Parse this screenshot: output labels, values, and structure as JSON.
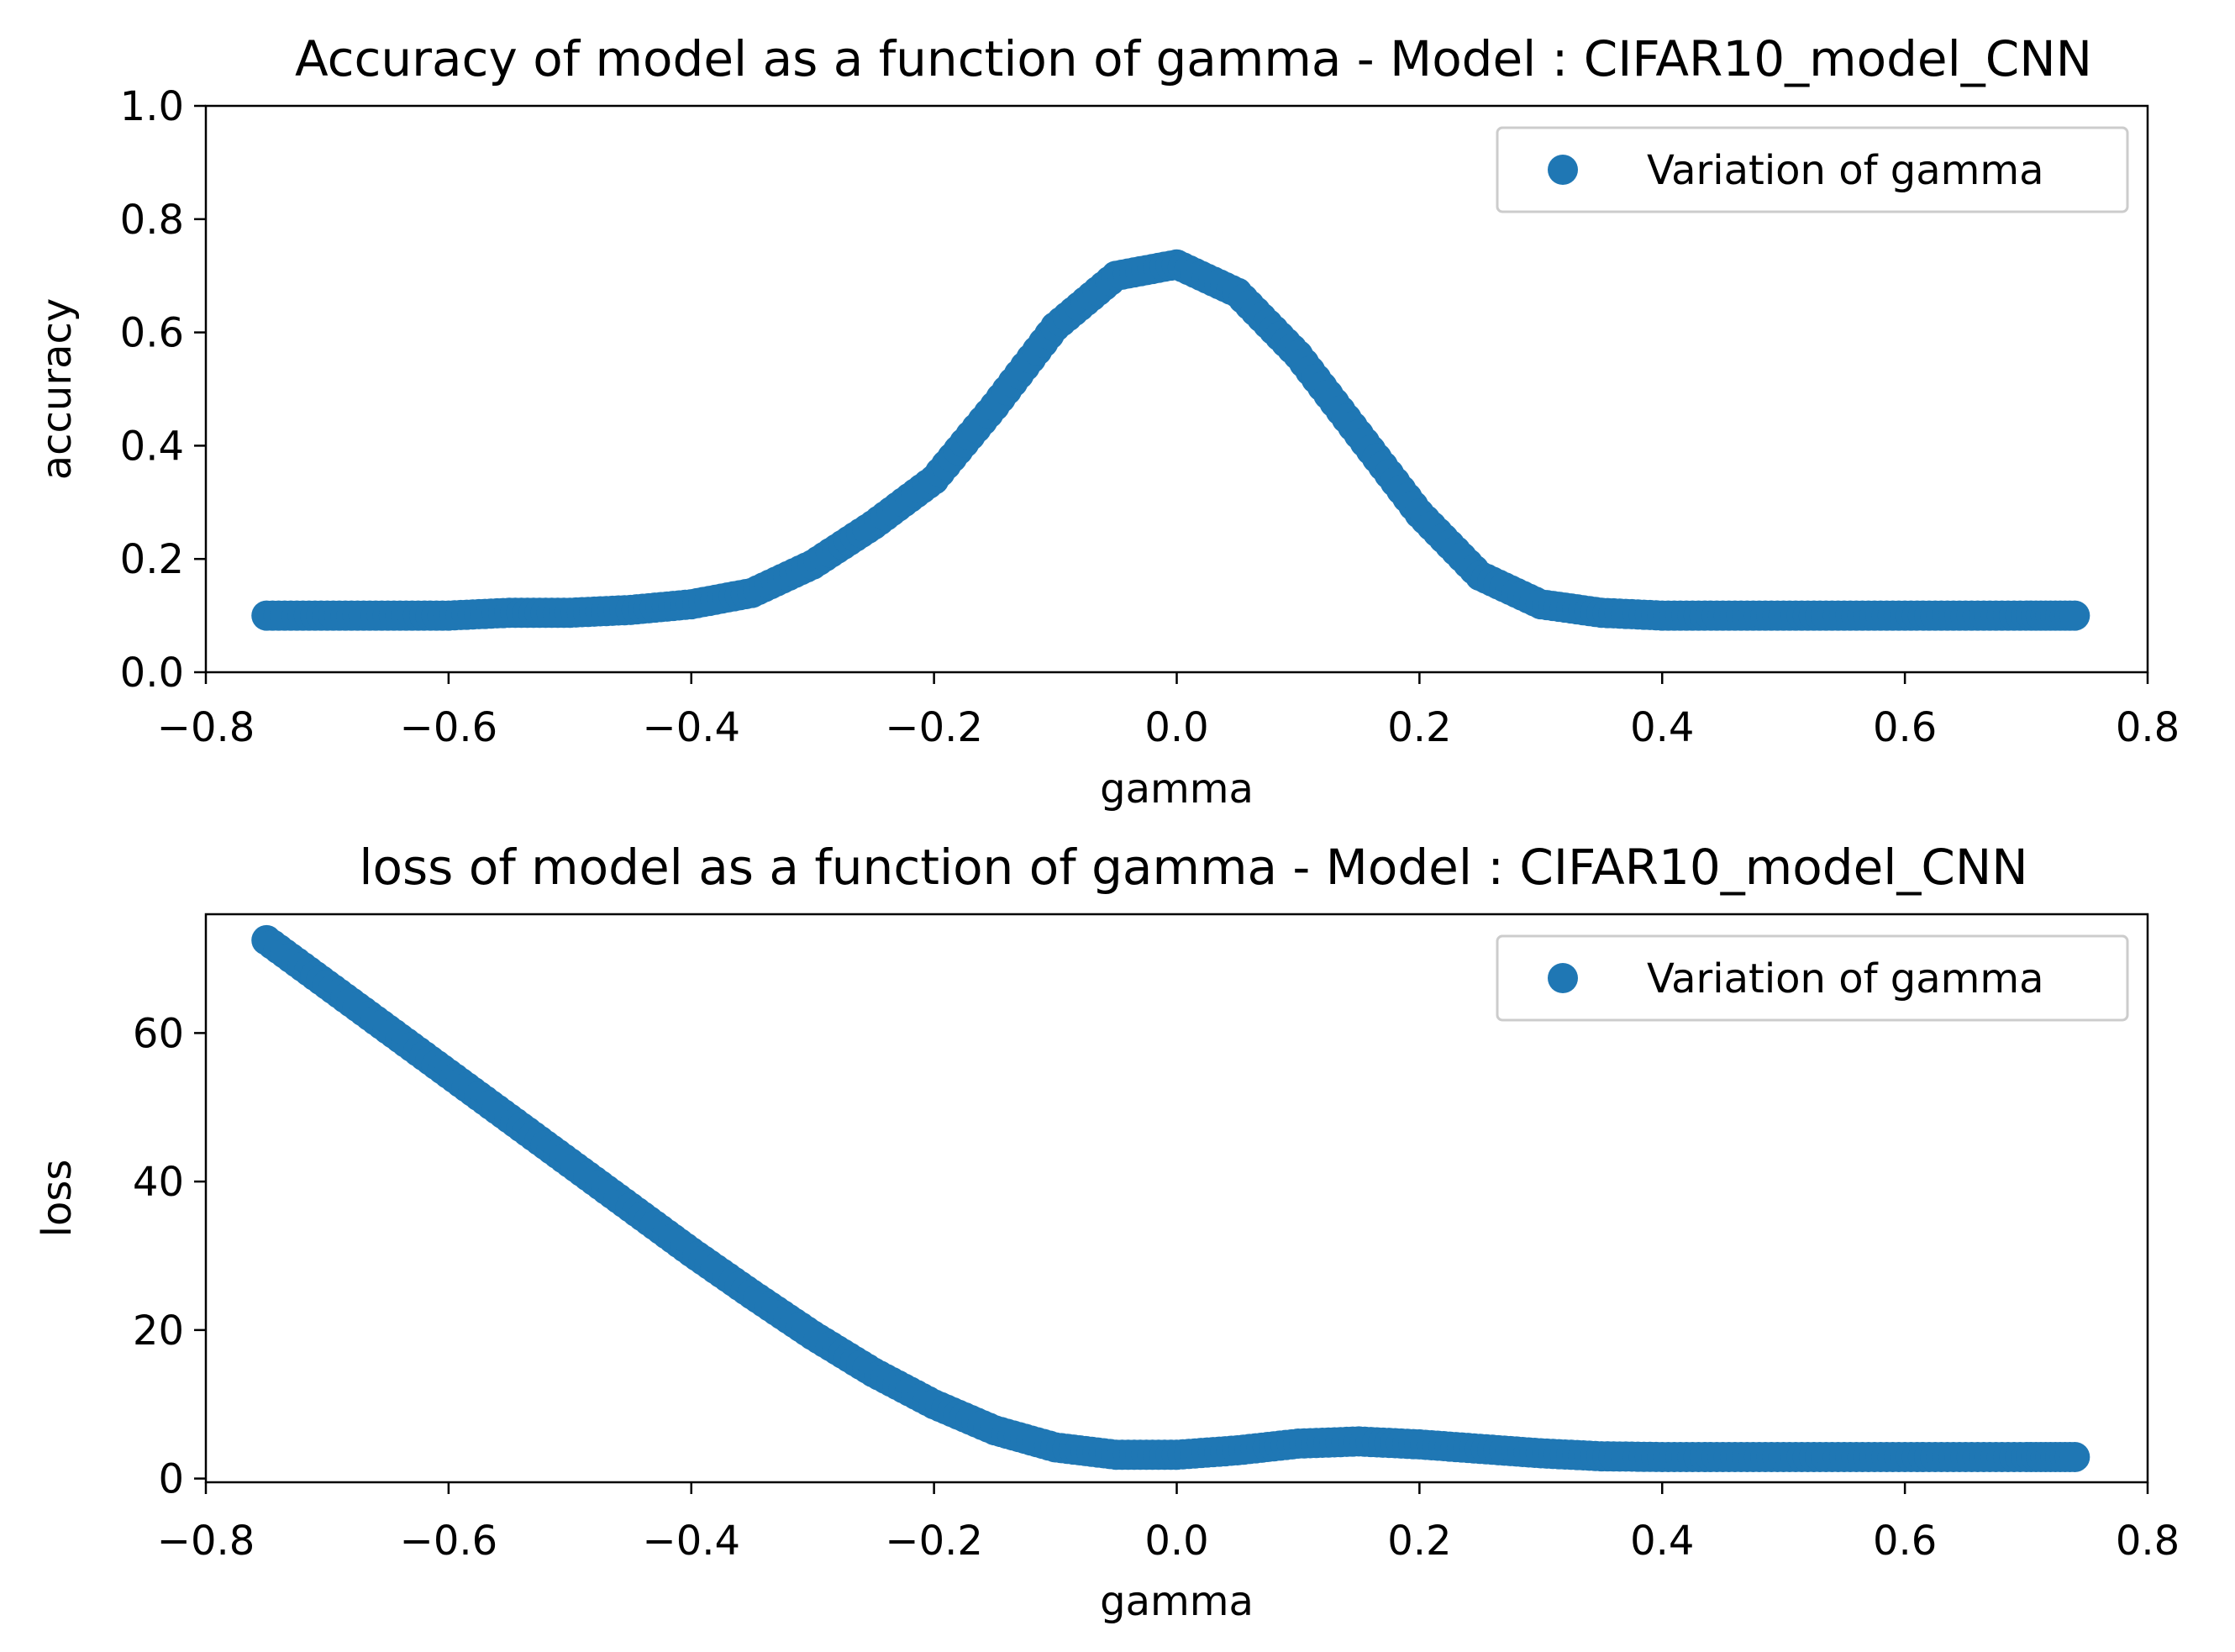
{
  "chart_data": [
    {
      "type": "scatter",
      "title": "Accuracy of model as a function of gamma - Model : CIFAR10_model_CNN",
      "xlabel": "gamma",
      "ylabel": "accuracy",
      "xlim": [
        -0.8,
        0.8
      ],
      "ylim": [
        0.0,
        1.0
      ],
      "xticks": [
        -0.8,
        -0.6,
        -0.4,
        -0.2,
        0.0,
        0.2,
        0.4,
        0.6,
        0.8
      ],
      "xtick_labels": [
        "−0.8",
        "−0.6",
        "−0.4",
        "−0.2",
        "0.0",
        "0.2",
        "0.4",
        "0.6",
        "0.8"
      ],
      "yticks": [
        0.0,
        0.2,
        0.4,
        0.6,
        0.8,
        1.0
      ],
      "ytick_labels": [
        "0.0",
        "0.2",
        "0.4",
        "0.6",
        "0.8",
        "1.0"
      ],
      "grid": false,
      "legend": "upper-right",
      "series": [
        {
          "name": "Variation of gamma",
          "color": "#1f77b4",
          "x": [
            -0.75,
            -0.7,
            -0.65,
            -0.6,
            -0.55,
            -0.5,
            -0.45,
            -0.4,
            -0.35,
            -0.3,
            -0.25,
            -0.2,
            -0.15,
            -0.1,
            -0.05,
            0.0,
            0.05,
            0.1,
            0.15,
            0.2,
            0.25,
            0.3,
            0.35,
            0.4,
            0.45,
            0.5,
            0.55,
            0.6,
            0.65,
            0.7,
            0.74
          ],
          "y": [
            0.1,
            0.1,
            0.1,
            0.1,
            0.105,
            0.105,
            0.11,
            0.12,
            0.14,
            0.19,
            0.26,
            0.34,
            0.47,
            0.61,
            0.7,
            0.72,
            0.67,
            0.56,
            0.42,
            0.28,
            0.17,
            0.12,
            0.105,
            0.1,
            0.1,
            0.1,
            0.1,
            0.1,
            0.1,
            0.1,
            0.1
          ]
        }
      ]
    },
    {
      "type": "scatter",
      "title": "loss of model as a function of gamma - Model : CIFAR10_model_CNN",
      "xlabel": "gamma",
      "ylabel": "loss",
      "xlim": [
        -0.8,
        0.8
      ],
      "ylim": [
        -0.5,
        76
      ],
      "xticks": [
        -0.8,
        -0.6,
        -0.4,
        -0.2,
        0.0,
        0.2,
        0.4,
        0.6,
        0.8
      ],
      "xtick_labels": [
        "−0.8",
        "−0.6",
        "−0.4",
        "−0.2",
        "0.0",
        "0.2",
        "0.4",
        "0.6",
        "0.8"
      ],
      "yticks": [
        0,
        20,
        40,
        60
      ],
      "ytick_labels": [
        "0",
        "20",
        "40",
        "60"
      ],
      "grid": false,
      "legend": "upper-right",
      "series": [
        {
          "name": "Variation of gamma",
          "color": "#1f77b4",
          "x": [
            -0.75,
            -0.7,
            -0.65,
            -0.6,
            -0.55,
            -0.5,
            -0.45,
            -0.4,
            -0.35,
            -0.3,
            -0.25,
            -0.2,
            -0.15,
            -0.1,
            -0.05,
            0.0,
            0.05,
            0.1,
            0.15,
            0.2,
            0.25,
            0.3,
            0.35,
            0.4,
            0.45,
            0.5,
            0.55,
            0.6,
            0.65,
            0.7,
            0.74
          ],
          "y": [
            72.5,
            66.5,
            60.5,
            54.5,
            48.5,
            42.5,
            36.5,
            30.5,
            24.8,
            19.3,
            14.3,
            10.0,
            6.5,
            4.2,
            3.2,
            3.2,
            3.8,
            4.7,
            5.0,
            4.6,
            4.0,
            3.4,
            3.0,
            2.9,
            2.9,
            2.9,
            2.9,
            2.9,
            2.9,
            2.9,
            2.9
          ]
        }
      ]
    }
  ]
}
